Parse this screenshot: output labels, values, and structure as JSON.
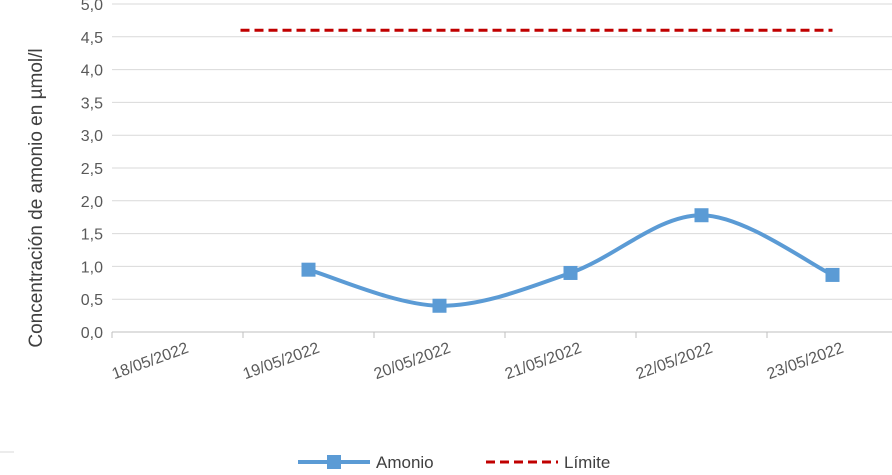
{
  "chart_data": {
    "type": "line",
    "title": "",
    "xlabel": "",
    "ylabel": "Concentración de amonio en µmol/l",
    "ylim": [
      0,
      5
    ],
    "y_ticks": [
      "0,0",
      "0,5",
      "1,0",
      "1,5",
      "2,0",
      "2,5",
      "3,0",
      "3,5",
      "4,0",
      "4,5",
      "5,0"
    ],
    "x_tick_labels": [
      "18/05/2022",
      "19/05/2022",
      "20/05/2022",
      "21/05/2022",
      "22/05/2022",
      "23/05/2022"
    ],
    "x_range": [
      "18/05/2022 00:00",
      "23/05/2022 24:00"
    ],
    "grid": true,
    "legend_position": "bottom",
    "series": [
      {
        "name": "Amonio",
        "color": "#5b9bd5",
        "style": "smooth-line-square-markers",
        "points": [
          {
            "x": "19/05/2022 12:00",
            "y": 0.95
          },
          {
            "x": "20/05/2022 12:00",
            "y": 0.4
          },
          {
            "x": "21/05/2022 12:00",
            "y": 0.9
          },
          {
            "x": "22/05/2022 12:00",
            "y": 1.78
          },
          {
            "x": "23/05/2022 12:00",
            "y": 0.87
          }
        ]
      },
      {
        "name": "Límite",
        "color": "#c00000",
        "style": "dashed",
        "points": [
          {
            "x": "18/05/2022 12:00",
            "y": 4.6
          },
          {
            "x": "23/05/2022 12:00",
            "y": 4.6
          }
        ]
      }
    ]
  }
}
